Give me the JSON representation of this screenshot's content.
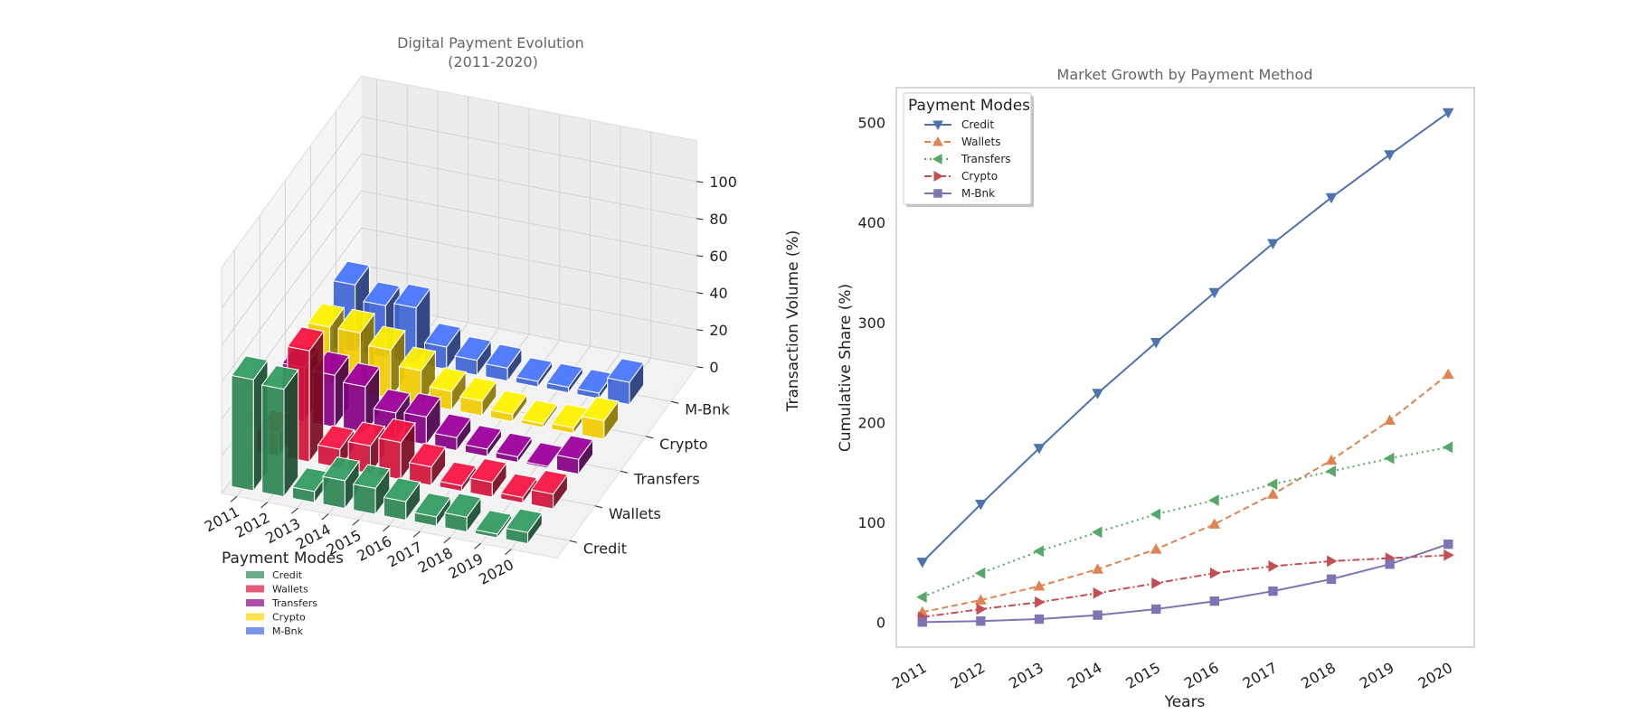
{
  "chart_data": [
    {
      "type": "bar3d",
      "title": "Digital Payment Evolution\n(2011-2020)",
      "zlabel": "Transaction Volume (%)",
      "x": [
        "2011",
        "2012",
        "2013",
        "2014",
        "2015",
        "2016",
        "2017",
        "2018",
        "2019",
        "2020"
      ],
      "zlim": [
        0,
        100
      ],
      "zticks": [
        0,
        20,
        40,
        60,
        80,
        100
      ],
      "legend": {
        "title": "Payment Modes",
        "position": "lower-left"
      },
      "series": [
        {
          "name": "Credit",
          "color": "#2e8b57",
          "values": [
            60,
            58,
            6,
            15,
            14,
            10,
            5,
            8,
            2,
            6
          ]
        },
        {
          "name": "Wallets",
          "color": "#dc143c",
          "values": [
            12,
            60,
            10,
            15,
            20,
            10,
            3,
            8,
            3,
            8
          ]
        },
        {
          "name": "Transfers",
          "color": "#8b008b",
          "values": [
            29,
            28,
            25,
            14,
            15,
            7,
            4,
            3,
            1,
            8
          ]
        },
        {
          "name": "Crypto",
          "color": "#ffd700",
          "values": [
            32,
            32,
            26,
            18,
            10,
            8,
            4,
            2,
            3,
            10
          ]
        },
        {
          "name": "M-Bnk",
          "color": "#4169e1",
          "values": [
            36,
            28,
            30,
            12,
            8,
            7,
            3,
            3,
            3,
            12
          ]
        }
      ]
    },
    {
      "type": "line",
      "title": "Market Growth by Payment Method",
      "xlabel": "Years",
      "ylabel": "Cumulative Share (%)",
      "x": [
        "2011",
        "2012",
        "2013",
        "2014",
        "2015",
        "2016",
        "2017",
        "2018",
        "2019",
        "2020"
      ],
      "ylim": [
        -25,
        535
      ],
      "yticks": [
        0,
        100,
        200,
        300,
        400,
        500
      ],
      "grid": false,
      "legend": {
        "title": "Payment Modes",
        "position": "top-left"
      },
      "series": [
        {
          "name": "Credit",
          "color": "#4c72b0",
          "dash": "solid",
          "marker": "triangle-down",
          "values": [
            60,
            118,
            174,
            229,
            280,
            330,
            379,
            425,
            468,
            510
          ]
        },
        {
          "name": "Wallets",
          "color": "#dd8452",
          "dash": "dashed",
          "marker": "triangle-up",
          "values": [
            10,
            22,
            36,
            53,
            73,
            98,
            128,
            162,
            202,
            248
          ]
        },
        {
          "name": "Transfers",
          "color": "#55a868",
          "dash": "dotted",
          "marker": "triangle-left",
          "values": [
            25,
            49,
            71,
            90,
            108,
            122,
            138,
            151,
            164,
            175
          ]
        },
        {
          "name": "Crypto",
          "color": "#c44e52",
          "dash": "dashdot",
          "marker": "triangle-right",
          "values": [
            5,
            13,
            20,
            29,
            39,
            49,
            56,
            61,
            64,
            67
          ]
        },
        {
          "name": "M-Bnk",
          "color": "#8172b3",
          "dash": "solid",
          "marker": "square",
          "values": [
            0,
            1,
            3,
            7,
            13,
            21,
            31,
            43,
            58,
            78
          ]
        }
      ]
    }
  ]
}
